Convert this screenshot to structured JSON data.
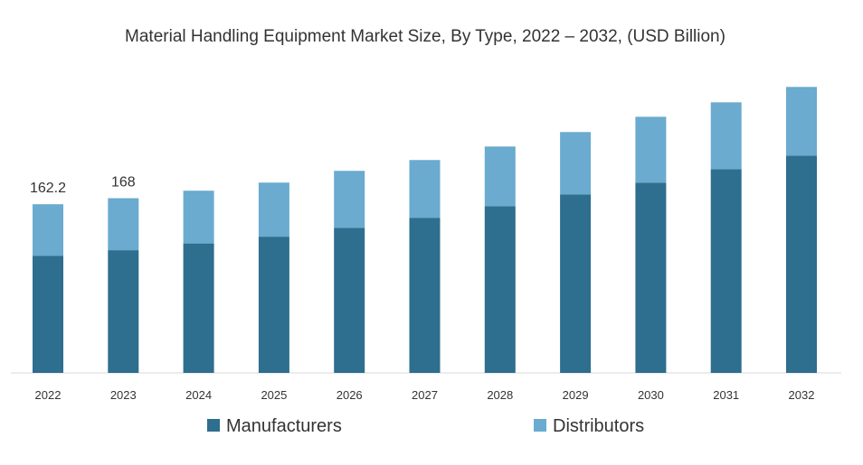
{
  "chart_data": {
    "type": "bar",
    "stacked": true,
    "title": "Material Handling Equipment Market Size, By Type, 2022 – 2032, (USD Billion)",
    "xlabel": "",
    "ylabel": "",
    "ylim": [
      0,
      290
    ],
    "grid": false,
    "legend_position": "bottom",
    "categories": [
      "2022",
      "2023",
      "2024",
      "2025",
      "2026",
      "2027",
      "2028",
      "2029",
      "2030",
      "2031",
      "2032"
    ],
    "series": [
      {
        "name": "Manufacturers",
        "color": "#2e6e8e",
        "values": [
          112.7,
          118.0,
          124.5,
          131.0,
          139.6,
          149.2,
          160.4,
          171.7,
          183.0,
          196.0,
          209.0
        ]
      },
      {
        "name": "Distributors",
        "color": "#6aabcf",
        "values": [
          49.5,
          50.0,
          50.7,
          52.0,
          54.7,
          55.5,
          57.3,
          59.9,
          63.3,
          64.2,
          66.0
        ]
      }
    ],
    "data_labels": [
      {
        "category": "2022",
        "text": "162.2"
      },
      {
        "category": "2023",
        "text": "168"
      }
    ]
  }
}
